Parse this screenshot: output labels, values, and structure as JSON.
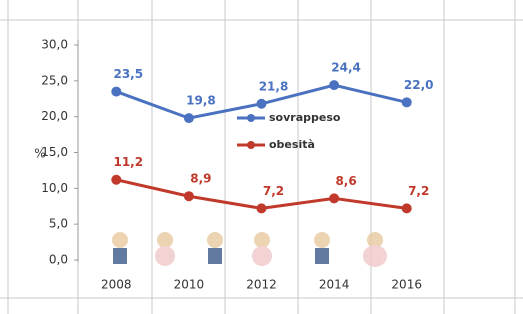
{
  "chart_data": {
    "type": "line",
    "y_label": "%",
    "categories": [
      "2008",
      "2010",
      "2012",
      "2014",
      "2016"
    ],
    "series": [
      {
        "name": "sovrappeso",
        "color": "#4a72c0",
        "values": [
          23.5,
          19.8,
          21.8,
          24.4,
          22.0
        ],
        "value_labels": [
          "23,5",
          "19,8",
          "21,8",
          "24,4",
          "22,0"
        ]
      },
      {
        "name": "obesità",
        "color": "#c0392b",
        "values": [
          11.2,
          8.9,
          7.2,
          8.6,
          7.2
        ],
        "value_labels": [
          "11,2",
          "8,9",
          "7,2",
          "8,6",
          "7,2"
        ]
      }
    ],
    "ylim": [
      0,
      30
    ],
    "yticks": [
      {
        "value": 0,
        "label": "0,0"
      },
      {
        "value": 5,
        "label": "5,0"
      },
      {
        "value": 10,
        "label": "10,0"
      },
      {
        "value": 15,
        "label": "15,0"
      },
      {
        "value": 20,
        "label": "20,0"
      },
      {
        "value": 25,
        "label": "25,0"
      },
      {
        "value": 30,
        "label": "30,0"
      }
    ]
  }
}
